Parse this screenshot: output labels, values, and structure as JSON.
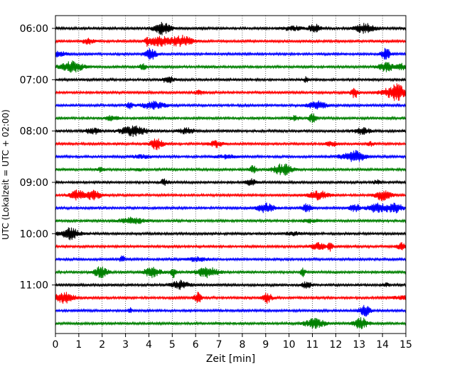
{
  "chart_data": {
    "type": "line",
    "title": "",
    "xlabel": "Zeit  [min]",
    "ylabel": "UTC (Lokalzeit = UTC + 02:00)",
    "xlim": [
      0,
      15
    ],
    "x_ticks": [
      "0",
      "1",
      "2",
      "3",
      "4",
      "5",
      "6",
      "7",
      "8",
      "9",
      "10",
      "11",
      "12",
      "13",
      "14",
      "15"
    ],
    "y_tick_labels": [
      "06:00",
      "07:00",
      "08:00",
      "09:00",
      "10:00",
      "11:00"
    ],
    "grid": "vertical dotted lines at each minute",
    "trace_interval_minutes": 15,
    "trace_color_cycle": [
      "#000000",
      "#ff0000",
      "#0000ff",
      "#008000"
    ],
    "traces": [
      {
        "start": "06:00",
        "color": "#000000"
      },
      {
        "start": "06:15",
        "color": "#ff0000"
      },
      {
        "start": "06:30",
        "color": "#0000ff"
      },
      {
        "start": "06:45",
        "color": "#008000"
      },
      {
        "start": "07:00",
        "color": "#000000"
      },
      {
        "start": "07:15",
        "color": "#ff0000"
      },
      {
        "start": "07:30",
        "color": "#0000ff"
      },
      {
        "start": "07:45",
        "color": "#008000"
      },
      {
        "start": "08:00",
        "color": "#000000"
      },
      {
        "start": "08:15",
        "color": "#ff0000"
      },
      {
        "start": "08:30",
        "color": "#0000ff"
      },
      {
        "start": "08:45",
        "color": "#008000"
      },
      {
        "start": "09:00",
        "color": "#000000"
      },
      {
        "start": "09:15",
        "color": "#ff0000"
      },
      {
        "start": "09:30",
        "color": "#0000ff"
      },
      {
        "start": "09:45",
        "color": "#008000"
      },
      {
        "start": "10:00",
        "color": "#000000"
      },
      {
        "start": "10:15",
        "color": "#ff0000"
      },
      {
        "start": "10:30",
        "color": "#0000ff"
      },
      {
        "start": "10:45",
        "color": "#008000"
      },
      {
        "start": "11:00",
        "color": "#000000"
      },
      {
        "start": "11:15",
        "color": "#ff0000"
      },
      {
        "start": "11:30",
        "color": "#0000ff"
      },
      {
        "start": "11:45",
        "color": "#008000"
      }
    ]
  }
}
